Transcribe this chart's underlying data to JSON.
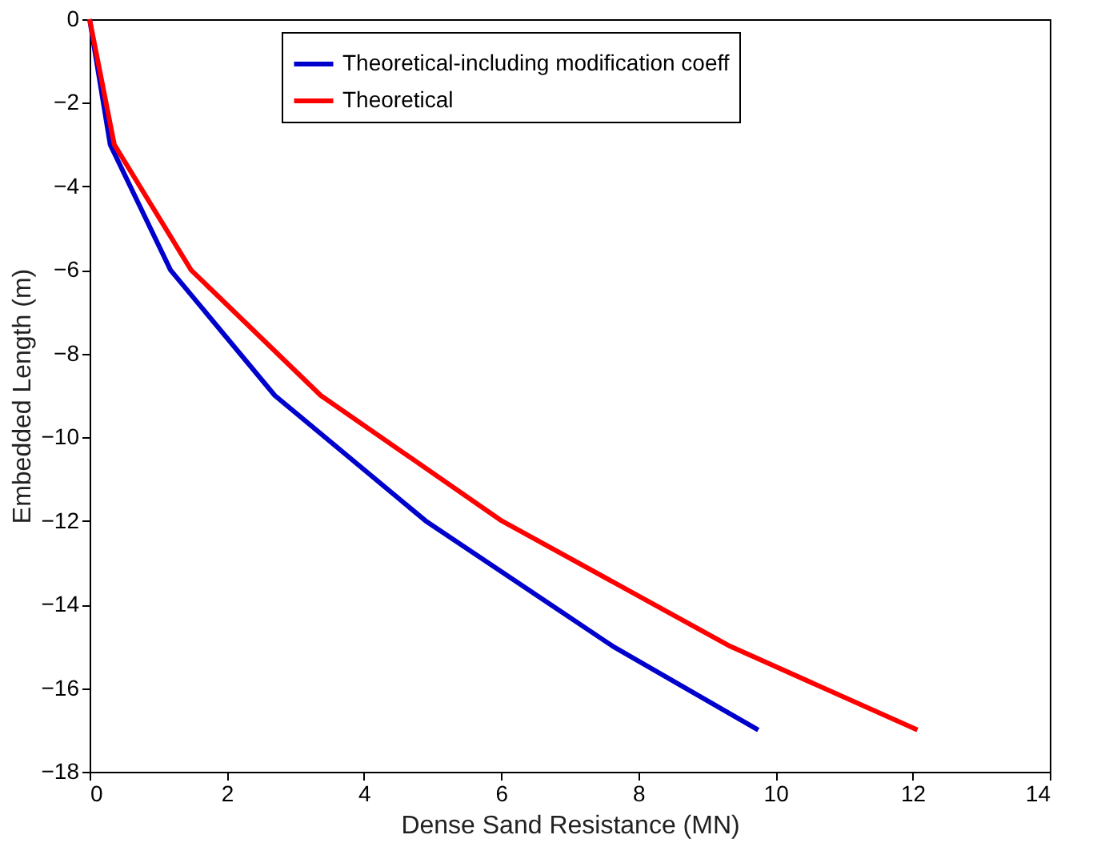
{
  "chart_data": {
    "type": "line",
    "xlabel": "Dense Sand Resistance (MN)",
    "ylabel": "Embedded Length (m)",
    "xlim": [
      0,
      14
    ],
    "xticks": [
      0,
      2,
      4,
      6,
      8,
      10,
      12,
      14
    ],
    "ylim": [
      -18,
      0
    ],
    "yticks": [
      -18,
      -16,
      -14,
      -12,
      -10,
      -8,
      -6,
      -4,
      -2,
      0
    ],
    "grid": false,
    "legend": "top",
    "marker": "none",
    "line_style": "solid",
    "series": [
      {
        "name": "Theoretical-including modification coeff",
        "color": "#0000cc",
        "x": [
          0,
          0.3,
          1.18,
          2.7,
          4.9,
          7.63,
          9.75
        ],
        "values": [
          0,
          -3,
          -6,
          -9,
          -12,
          -15,
          -17
        ]
      },
      {
        "name": "Theoretical",
        "color": "#ff0000",
        "x": [
          0,
          0.36,
          1.48,
          3.37,
          6.01,
          9.34,
          12.07
        ],
        "values": [
          0,
          -3,
          -6,
          -9,
          -12,
          -15,
          -17
        ]
      }
    ]
  }
}
